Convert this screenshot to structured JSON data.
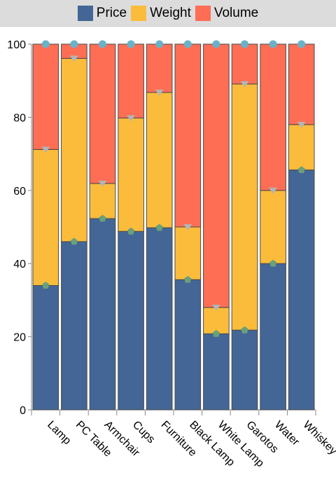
{
  "chart_data": {
    "type": "bar",
    "stacked": true,
    "normalized_percent": true,
    "categories": [
      "Lamp",
      "PC Table",
      "Armchair",
      "Cups",
      "Furniture",
      "Black Lamp",
      "White Lamp",
      "Garotos",
      "Water",
      "Whiskey"
    ],
    "series": [
      {
        "name": "Price",
        "color": "#436696",
        "marker": "pentagon",
        "marker_color": "#6aa07a",
        "values": [
          34,
          46,
          52.3,
          48.8,
          49.8,
          35.6,
          20.8,
          21.8,
          40,
          65.6
        ]
      },
      {
        "name": "Weight",
        "color": "#fbbc3c",
        "marker": "triangle-down",
        "marker_color": "#b4b4b4",
        "values": [
          37.2,
          50.1,
          9.6,
          31,
          37,
          14.4,
          7.2,
          67.3,
          20,
          12.4
        ]
      },
      {
        "name": "Volume",
        "color": "#fd6e55",
        "marker": "circle",
        "marker_color": "#6ab2c8",
        "values": [
          28.8,
          3.9,
          38.1,
          20.2,
          13.2,
          50,
          72,
          10.9,
          40,
          22
        ]
      }
    ],
    "ylim": [
      0,
      100
    ],
    "yticks": [
      "0",
      "20",
      "40",
      "60",
      "80",
      "100"
    ],
    "xlabel": "",
    "ylabel": "",
    "legend_position": "top",
    "grid": false
  },
  "legend": {
    "price": "Price",
    "weight": "Weight",
    "volume": "Volume"
  }
}
